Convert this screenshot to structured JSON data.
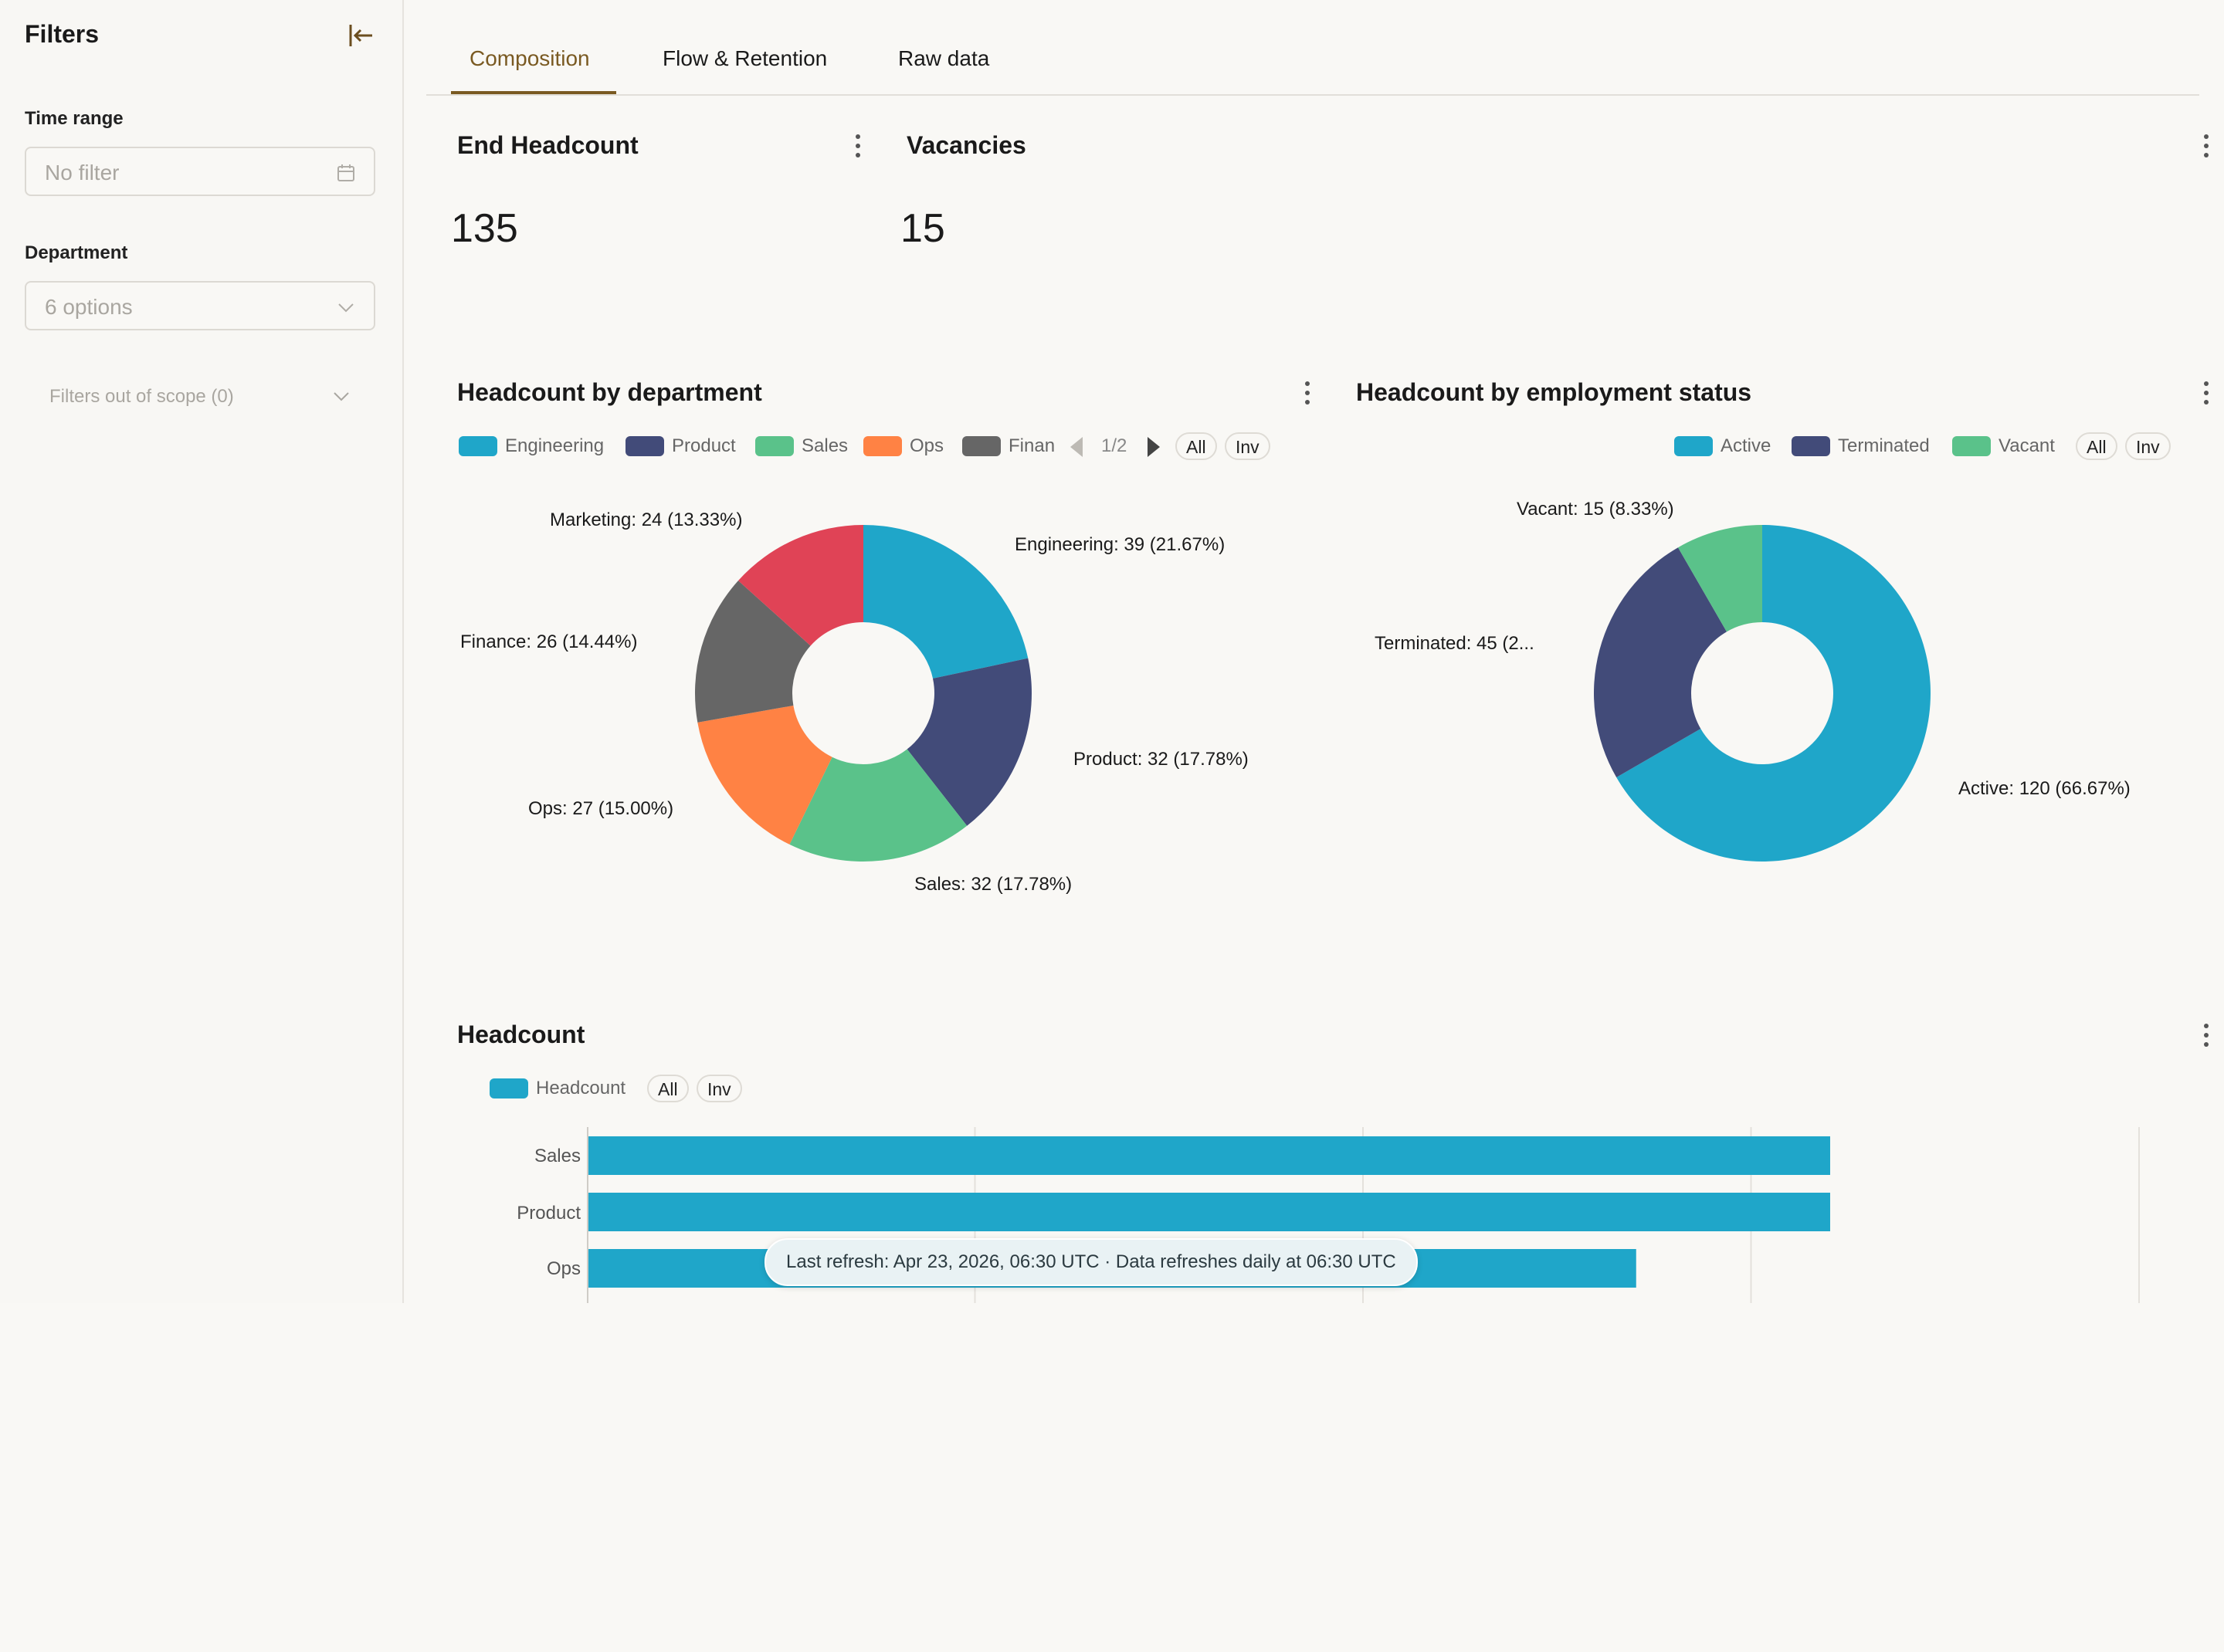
{
  "sidebar": {
    "title": "Filters",
    "time_range": {
      "label": "Time range",
      "placeholder": "No filter"
    },
    "department": {
      "label": "Department",
      "placeholder": "6 options"
    },
    "out_of_scope": "Filters out of scope (0)"
  },
  "tabs": [
    {
      "label": "Composition",
      "active": true
    },
    {
      "label": "Flow & Retention",
      "active": false
    },
    {
      "label": "Raw data",
      "active": false
    }
  ],
  "kpis": {
    "end_headcount": {
      "title": "End Headcount",
      "value": "135"
    },
    "vacancies": {
      "title": "Vacancies",
      "value": "15"
    }
  },
  "colors": {
    "engineering": "#1fa6c9",
    "product": "#424b79",
    "sales": "#5ac28a",
    "ops": "#ff8244",
    "finance": "#666666",
    "marketing": "#e04356",
    "accent": "#7a5a22"
  },
  "dept_chart": {
    "title": "Headcount by department",
    "legend": {
      "items": [
        "Engineering",
        "Product",
        "Sales",
        "Ops",
        "Finan"
      ],
      "page": "1/2",
      "all": "All",
      "inv": "Inv"
    },
    "labels": {
      "engineering": "Engineering: 39 (21.67%)",
      "product": "Product: 32 (17.78%)",
      "sales": "Sales: 32 (17.78%)",
      "ops": "Ops: 27 (15.00%)",
      "finance": "Finance: 26 (14.44%)",
      "marketing": "Marketing: 24 (13.33%)"
    }
  },
  "status_chart": {
    "title": "Headcount by employment status",
    "legend": {
      "items": [
        "Active",
        "Terminated",
        "Vacant"
      ],
      "all": "All",
      "inv": "Inv"
    },
    "labels": {
      "active": "Active: 120 (66.67%)",
      "terminated": "Terminated: 45 (2...",
      "vacant": "Vacant: 15 (8.33%)"
    }
  },
  "headcount_chart": {
    "title": "Headcount",
    "legend": {
      "items": [
        "Headcount"
      ],
      "all": "All",
      "inv": "Inv"
    },
    "categories": [
      "Sales",
      "Product",
      "Ops"
    ]
  },
  "tooltip": "Last refresh: Apr 23, 2026, 06:30 UTC · Data refreshes daily at 06:30 UTC",
  "chart_data": [
    {
      "type": "pie",
      "title": "Headcount by department",
      "donut": true,
      "labels": [
        "Engineering",
        "Product",
        "Sales",
        "Ops",
        "Finance",
        "Marketing"
      ],
      "values": [
        39,
        32,
        32,
        27,
        26,
        24
      ],
      "percents": [
        21.67,
        17.78,
        17.78,
        15.0,
        14.44,
        13.33
      ],
      "colors": [
        "#1fa6c9",
        "#424b79",
        "#5ac28a",
        "#ff8244",
        "#666666",
        "#e04356"
      ],
      "legend": "top"
    },
    {
      "type": "pie",
      "title": "Headcount by employment status",
      "donut": true,
      "labels": [
        "Active",
        "Terminated",
        "Vacant"
      ],
      "values": [
        120,
        45,
        15
      ],
      "percents": [
        66.67,
        25.0,
        8.33
      ],
      "colors": [
        "#1fa6c9",
        "#424b79",
        "#5ac28a"
      ],
      "legend": "top-right"
    },
    {
      "type": "bar",
      "orientation": "horizontal",
      "title": "Headcount",
      "categories": [
        "Sales",
        "Product",
        "Ops"
      ],
      "series": [
        {
          "name": "Headcount",
          "values": [
            32,
            32,
            27
          ]
        }
      ],
      "xlim": [
        0,
        40
      ],
      "grid": true
    }
  ]
}
